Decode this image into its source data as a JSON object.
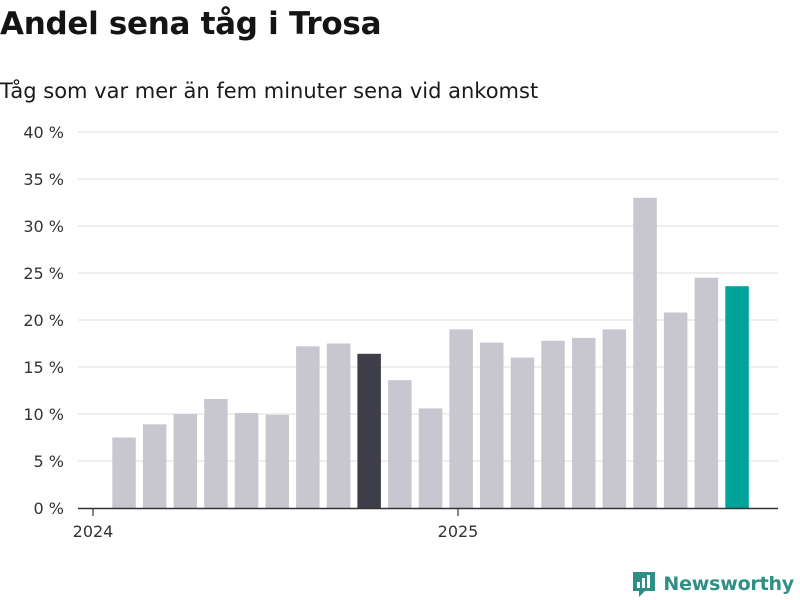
{
  "title": "Andel sena tåg i Trosa",
  "subtitle": "Tåg som var mer än fem minuter sena vid ankomst",
  "brand": {
    "name": "Newsworthy",
    "icon": "bar-chart-logo-icon"
  },
  "colors": {
    "default": "#c8c7cf",
    "highlight_dark": "#3e3d4a",
    "highlight_teal": "#00a398",
    "grid": "#dcdcdc",
    "axis": "#333333",
    "brand": "#2f8f86"
  },
  "chart_data": {
    "type": "bar",
    "title": "Andel sena tåg i Trosa",
    "subtitle": "Tåg som var mer än fem minuter sena vid ankomst",
    "xlabel": "",
    "ylabel": "",
    "x_tick_labels": [
      "2024",
      "2025"
    ],
    "y_tick_labels": [
      "0 %",
      "5 %",
      "10 %",
      "15 %",
      "20 %",
      "25 %",
      "30 %",
      "35 %",
      "40 %"
    ],
    "ylim": [
      0,
      40
    ],
    "grid": true,
    "categories": [
      "2024-01",
      "2024-02",
      "2024-03",
      "2024-04",
      "2024-05",
      "2024-06",
      "2024-07",
      "2024-08",
      "2024-09",
      "2024-10",
      "2024-11",
      "2024-12",
      "2025-01",
      "2025-02",
      "2025-03",
      "2025-04",
      "2025-05",
      "2025-06",
      "2025-07",
      "2025-08",
      "2025-09"
    ],
    "values": [
      7.5,
      8.9,
      10.0,
      11.6,
      10.1,
      9.9,
      17.2,
      17.5,
      16.4,
      13.6,
      10.6,
      19.0,
      17.6,
      16.0,
      17.8,
      18.1,
      19.0,
      33.0,
      20.8,
      24.5,
      23.6
    ],
    "highlights": {
      "2024-09": "highlight_dark",
      "2025-09": "highlight_teal"
    }
  }
}
